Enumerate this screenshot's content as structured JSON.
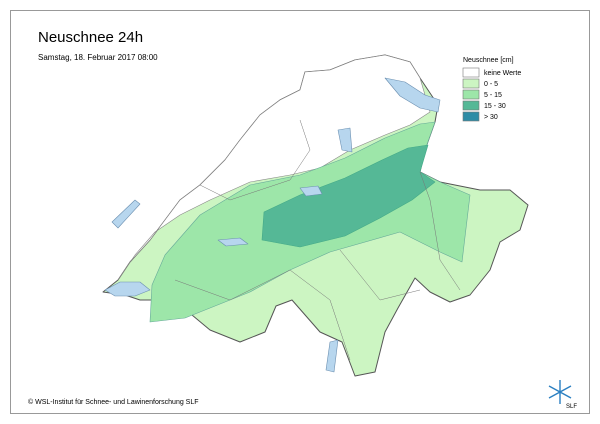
{
  "header": {
    "title": "Neuschnee 24h",
    "subtitle": "Samstag, 18. Februar 2017 08:00"
  },
  "legend": {
    "title": "Neuschnee [cm]",
    "items": [
      {
        "label": "keine Werte",
        "color": "#ffffff"
      },
      {
        "label": "0 - 5",
        "color": "#ccf5c2"
      },
      {
        "label": "5 - 15",
        "color": "#9de6a9"
      },
      {
        "label": "15 - 30",
        "color": "#55b896"
      },
      {
        "label": "> 30",
        "color": "#2e8ca6"
      }
    ]
  },
  "footer": {
    "copyright": "© WSL-Institut für Schnee- und Lawinenforschung SLF",
    "logo": "SLF"
  }
}
